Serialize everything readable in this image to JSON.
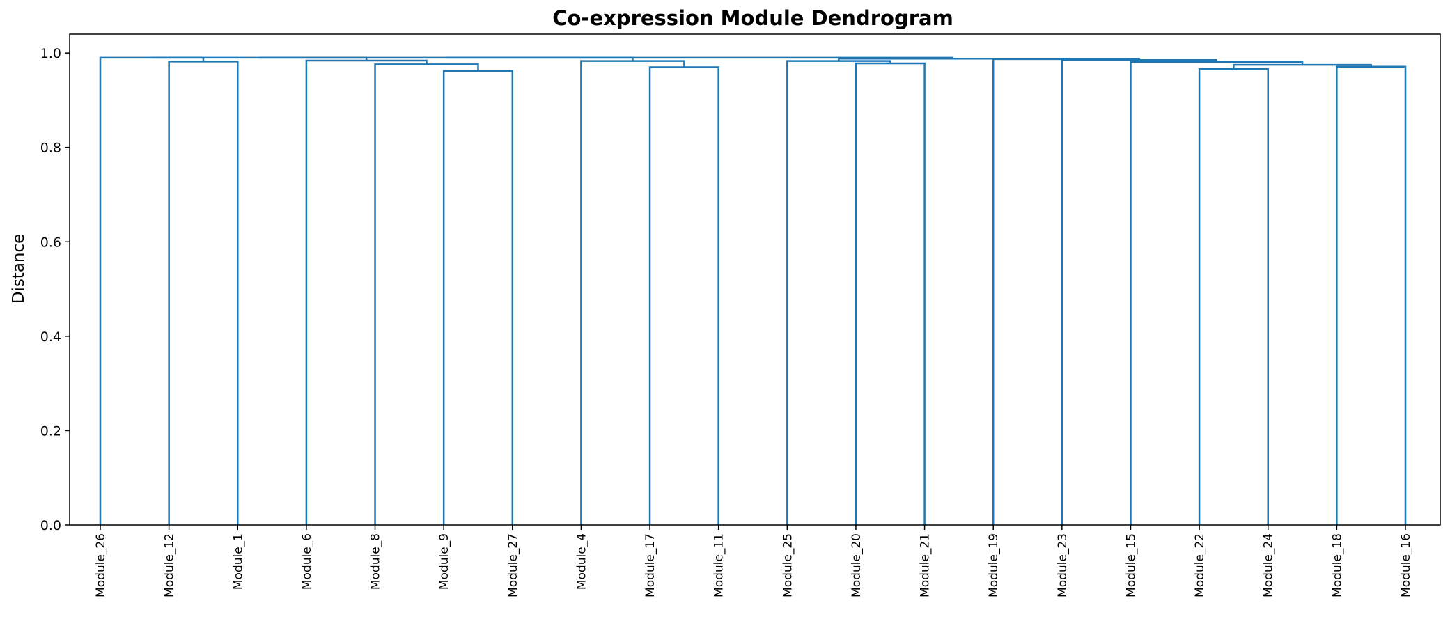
{
  "chart_data": {
    "type": "dendrogram",
    "title": "Co-expression Module Dendrogram",
    "xlabel": "",
    "ylabel": "Distance",
    "ylim": [
      0,
      1.04
    ],
    "yticks": [
      "0.0",
      "0.2",
      "0.4",
      "0.6",
      "0.8",
      "1.0"
    ],
    "grid": false,
    "line_color": "#1f77b4",
    "leaves": [
      "Module_26",
      "Module_12",
      "Module_1",
      "Module_6",
      "Module_8",
      "Module_9",
      "Module_27",
      "Module_4",
      "Module_17",
      "Module_11",
      "Module_25",
      "Module_20",
      "Module_21",
      "Module_19",
      "Module_23",
      "Module_15",
      "Module_22",
      "Module_24",
      "Module_18",
      "Module_16"
    ],
    "merges": [
      {
        "left": "Module_12",
        "right": "Module_1",
        "height": 0.982
      },
      {
        "left": "Module_9",
        "right": "Module_27",
        "height": 0.962
      },
      {
        "left": "Module_8",
        "right": "cluster_2",
        "height": 0.976
      },
      {
        "left": "Module_6",
        "right": "cluster_3",
        "height": 0.984
      },
      {
        "left": "Module_17",
        "right": "Module_11",
        "height": 0.97
      },
      {
        "left": "Module_4",
        "right": "cluster_5",
        "height": 0.983
      },
      {
        "left": "Module_20",
        "right": "Module_21",
        "height": 0.978
      },
      {
        "left": "Module_25",
        "right": "cluster_7",
        "height": 0.983
      },
      {
        "left": "Module_22",
        "right": "Module_24",
        "height": 0.966
      },
      {
        "left": "Module_18",
        "right": "Module_16",
        "height": 0.971
      },
      {
        "left": "cluster_9",
        "right": "cluster_10",
        "height": 0.975
      },
      {
        "left": "Module_15",
        "right": "cluster_11",
        "height": 0.981
      },
      {
        "left": "Module_23",
        "right": "cluster_12",
        "height": 0.985
      },
      {
        "left": "Module_19",
        "right": "cluster_13",
        "height": 0.987
      },
      {
        "left": "cluster_8",
        "right": "cluster_14",
        "height": 0.988
      },
      {
        "left": "Module_26",
        "right": "cluster_1",
        "height": 0.99
      },
      {
        "left": "cluster_16",
        "right": "cluster_4",
        "height": 0.99
      },
      {
        "left": "cluster_17",
        "right": "cluster_6",
        "height": 0.99
      },
      {
        "left": "cluster_18",
        "right": "cluster_15",
        "height": 0.99
      }
    ]
  }
}
